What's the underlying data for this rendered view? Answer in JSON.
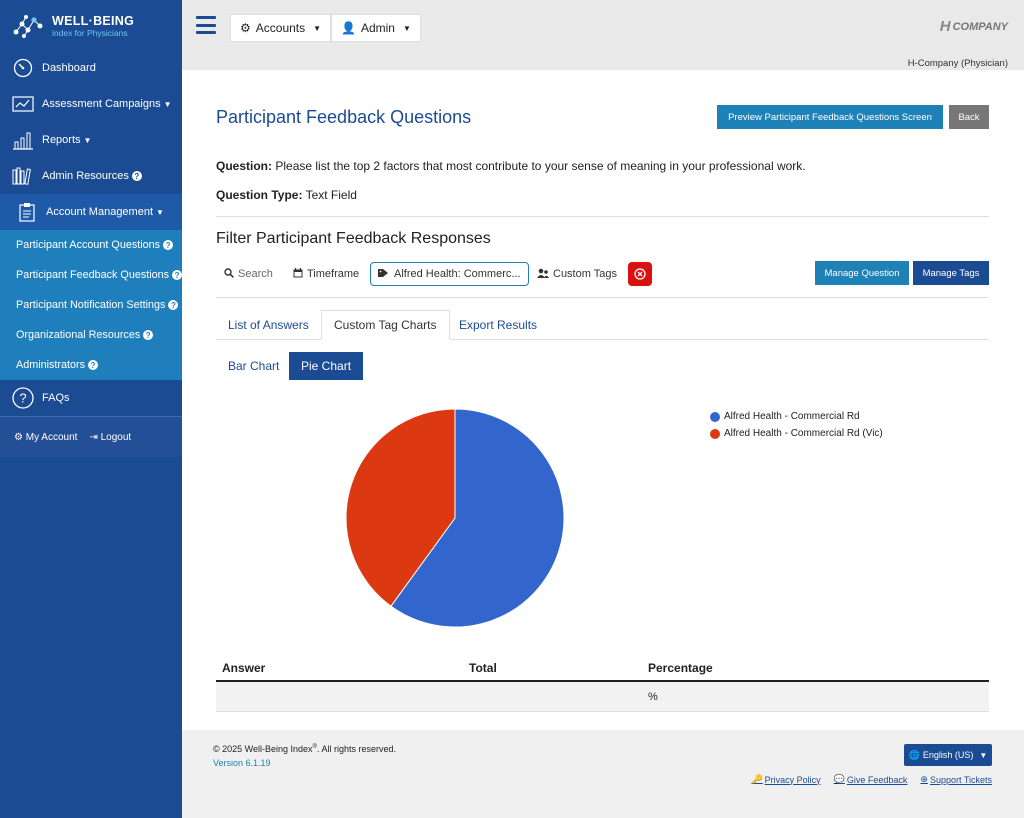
{
  "brand": {
    "title": "WELL·BEING",
    "subtitle": "index for Physicians"
  },
  "sidebar": {
    "items": [
      {
        "label": "Dashboard",
        "icon": "gauge-icon"
      },
      {
        "label": "Assessment Campaigns",
        "icon": "campaign-icon"
      },
      {
        "label": "Reports",
        "icon": "reports-icon"
      },
      {
        "label": "Admin Resources",
        "icon": "books-icon"
      },
      {
        "label": "Account Management",
        "icon": "clipboard-icon"
      }
    ],
    "sub_items": [
      {
        "label": "Participant Account Questions"
      },
      {
        "label": "Participant Feedback Questions"
      },
      {
        "label": "Participant Notification Settings"
      },
      {
        "label": "Organizational Resources"
      },
      {
        "label": "Administrators"
      }
    ],
    "faq_label": "FAQs",
    "my_account": "My Account",
    "logout": "Logout"
  },
  "topbar": {
    "accounts_label": "Accounts",
    "admin_label": "Admin",
    "company_logo": "COMPANY",
    "user_label": "H-Company (Physician)"
  },
  "page": {
    "title": "Participant Feedback Questions",
    "preview_button": "Preview Participant Feedback Questions Screen",
    "back_button": "Back",
    "question_label": "Question:",
    "question_text": "Please list the top 2 factors that most contribute to your sense of meaning in your professional work.",
    "question_type_label": "Question Type:",
    "question_type_value": "Text Field",
    "filter_title": "Filter Participant Feedback Responses"
  },
  "filters": {
    "search_label": "Search",
    "timeframe_label": "Timeframe",
    "tag_label": "Alfred Health: Commerc...",
    "custom_tags_label": "Custom Tags",
    "manage_question": "Manage Question",
    "manage_tags": "Manage Tags"
  },
  "tabs": [
    {
      "label": "List of Answers",
      "active": false
    },
    {
      "label": "Custom Tag Charts",
      "active": true
    },
    {
      "label": "Export Results",
      "active": false
    }
  ],
  "chart_toggle": {
    "bar": "Bar Chart",
    "pie": "Pie Chart",
    "selected": "Pie Chart"
  },
  "chart_data": {
    "type": "pie",
    "slices": [
      {
        "name": "Alfred Health - Commercial Rd",
        "value": 60,
        "color": "#3366cc"
      },
      {
        "name": "Alfred Health - Commercial Rd (Vic)",
        "value": 40,
        "color": "#dc3912"
      }
    ],
    "legend": "top-right"
  },
  "table": {
    "headers": [
      "Answer",
      "Total",
      "Percentage"
    ],
    "rows": [
      [
        "",
        "",
        "%"
      ]
    ]
  },
  "footer": {
    "copyright_pre": "© 2025 Well-Being Index",
    "copyright_sup": "®",
    "copyright_post": ". All rights reserved.",
    "version": "Version 6.1.19",
    "language": "English (US)",
    "links": [
      "Privacy Policy",
      "Give Feedback",
      "Support Tickets"
    ]
  }
}
